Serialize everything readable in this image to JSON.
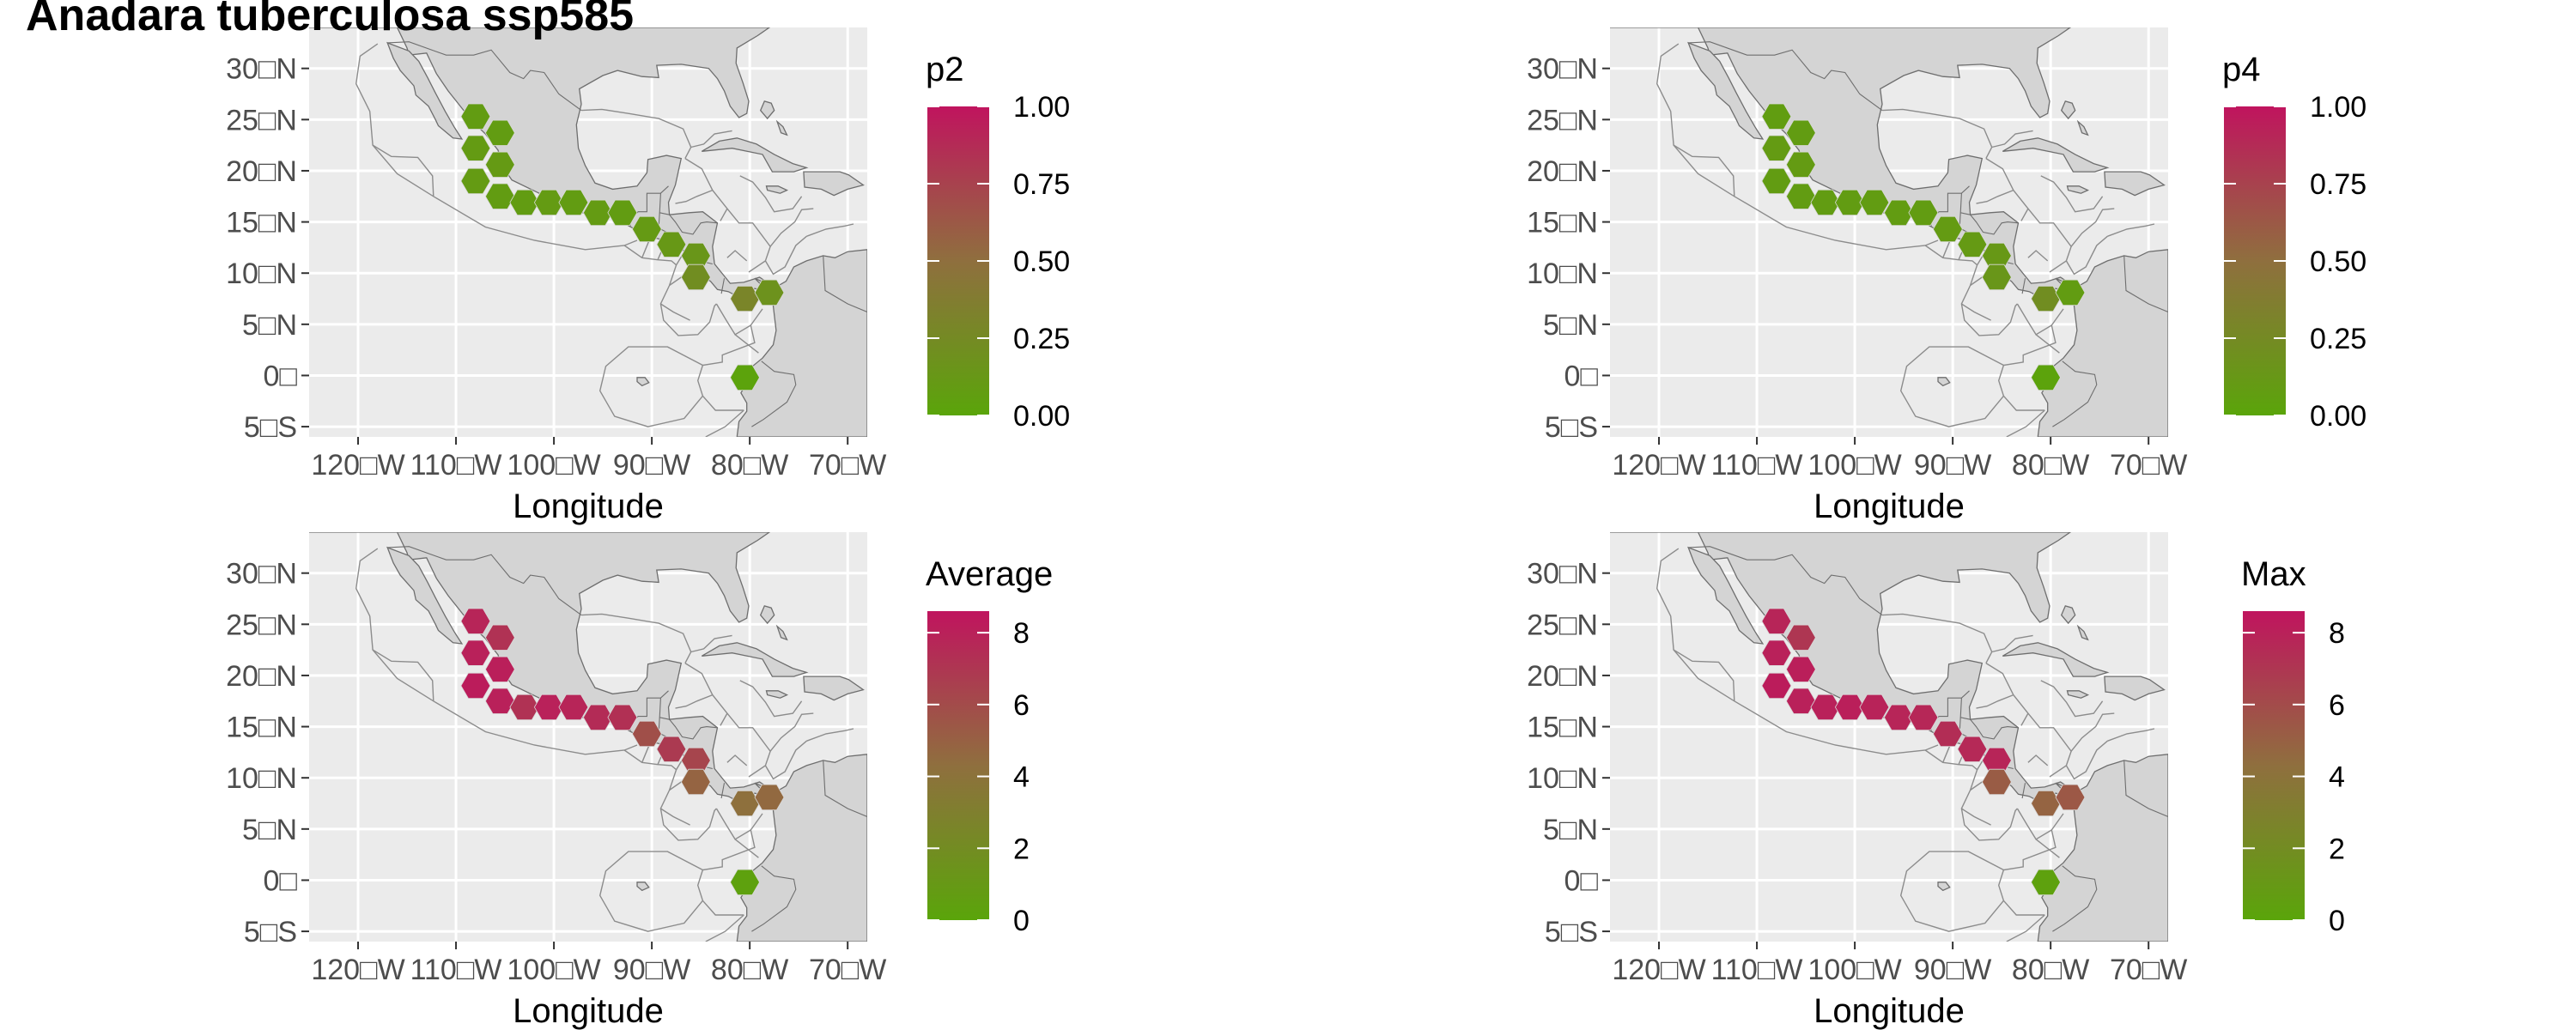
{
  "page": {
    "title": "Anadara tuberculosa ssp585"
  },
  "colors": {
    "panel_bg": "#ebebeb",
    "gridline": "#ffffff",
    "land": "#d4d4d4",
    "eez_line": "#8c8c8c",
    "coast_line": "#6e6e6e",
    "low": "#5aa50a",
    "mid": "#8f6f3e",
    "high": "#c0145e"
  },
  "chart_data": [
    {
      "type": "map",
      "legend_title": "p2",
      "xlabel": "Longitude",
      "ylabel": "",
      "xlim": [
        -125,
        -68
      ],
      "ylim": [
        -6,
        34
      ],
      "x_ticks": [
        -120,
        -110,
        -100,
        -90,
        -80,
        -70
      ],
      "x_tick_labels": [
        "120□W",
        "110□W",
        "100□W",
        "90□W",
        "80□W",
        "70□W"
      ],
      "y_ticks": [
        30,
        25,
        20,
        15,
        10,
        5,
        0,
        -5
      ],
      "y_tick_labels": [
        "30□N",
        "25□N",
        "20□N",
        "15□N",
        "10□N",
        "5□N",
        "0□",
        "5□S"
      ],
      "color_range": [
        0,
        1
      ],
      "legend_breaks": [
        1.0,
        0.75,
        0.5,
        0.25,
        0.0
      ],
      "legend_labels": [
        "1.00",
        "0.75",
        "0.50",
        "0.25",
        "0.00"
      ],
      "grid": true,
      "legend_position": "right",
      "points": [
        {
          "lon": -108.0,
          "lat": 25.3,
          "value": 0.08
        },
        {
          "lon": -105.5,
          "lat": 23.7,
          "value": 0.08
        },
        {
          "lon": -108.0,
          "lat": 22.2,
          "value": 0.09
        },
        {
          "lon": -105.5,
          "lat": 20.6,
          "value": 0.1
        },
        {
          "lon": -108.0,
          "lat": 19.0,
          "value": 0.09
        },
        {
          "lon": -105.5,
          "lat": 17.5,
          "value": 0.08
        },
        {
          "lon": -103.0,
          "lat": 16.9,
          "value": 0.08
        },
        {
          "lon": -100.5,
          "lat": 16.9,
          "value": 0.09
        },
        {
          "lon": -98.0,
          "lat": 16.9,
          "value": 0.08
        },
        {
          "lon": -95.5,
          "lat": 15.9,
          "value": 0.09
        },
        {
          "lon": -93.0,
          "lat": 15.9,
          "value": 0.08
        },
        {
          "lon": -90.5,
          "lat": 14.3,
          "value": 0.1
        },
        {
          "lon": -88.0,
          "lat": 12.8,
          "value": 0.12
        },
        {
          "lon": -85.5,
          "lat": 11.7,
          "value": 0.14
        },
        {
          "lon": -85.5,
          "lat": 9.6,
          "value": 0.22
        },
        {
          "lon": -80.5,
          "lat": 7.5,
          "value": 0.3
        },
        {
          "lon": -78.0,
          "lat": 8.1,
          "value": 0.18
        },
        {
          "lon": -80.5,
          "lat": -0.2,
          "value": 0.02
        }
      ]
    },
    {
      "type": "map",
      "legend_title": "p4",
      "xlabel": "Longitude",
      "ylabel": "",
      "xlim": [
        -125,
        -68
      ],
      "ylim": [
        -6,
        34
      ],
      "x_ticks": [
        -120,
        -110,
        -100,
        -90,
        -80,
        -70
      ],
      "x_tick_labels": [
        "120□W",
        "110□W",
        "100□W",
        "90□W",
        "80□W",
        "70□W"
      ],
      "y_ticks": [
        30,
        25,
        20,
        15,
        10,
        5,
        0,
        -5
      ],
      "y_tick_labels": [
        "30□N",
        "25□N",
        "20□N",
        "15□N",
        "10□N",
        "5□N",
        "0□",
        "5□S"
      ],
      "color_range": [
        0,
        1
      ],
      "legend_breaks": [
        1.0,
        0.75,
        0.5,
        0.25,
        0.0
      ],
      "legend_labels": [
        "1.00",
        "0.75",
        "0.50",
        "0.25",
        "0.00"
      ],
      "grid": true,
      "legend_position": "right",
      "points": [
        {
          "lon": -108.0,
          "lat": 25.3,
          "value": 0.07
        },
        {
          "lon": -105.5,
          "lat": 23.7,
          "value": 0.08
        },
        {
          "lon": -108.0,
          "lat": 22.2,
          "value": 0.09
        },
        {
          "lon": -105.5,
          "lat": 20.6,
          "value": 0.09
        },
        {
          "lon": -108.0,
          "lat": 19.0,
          "value": 0.08
        },
        {
          "lon": -105.5,
          "lat": 17.5,
          "value": 0.08
        },
        {
          "lon": -103.0,
          "lat": 16.9,
          "value": 0.08
        },
        {
          "lon": -100.5,
          "lat": 16.9,
          "value": 0.08
        },
        {
          "lon": -98.0,
          "lat": 16.9,
          "value": 0.08
        },
        {
          "lon": -95.5,
          "lat": 15.9,
          "value": 0.08
        },
        {
          "lon": -93.0,
          "lat": 15.9,
          "value": 0.08
        },
        {
          "lon": -90.5,
          "lat": 14.3,
          "value": 0.09
        },
        {
          "lon": -88.0,
          "lat": 12.8,
          "value": 0.1
        },
        {
          "lon": -85.5,
          "lat": 11.7,
          "value": 0.12
        },
        {
          "lon": -85.5,
          "lat": 9.6,
          "value": 0.14
        },
        {
          "lon": -80.5,
          "lat": 7.5,
          "value": 0.22
        },
        {
          "lon": -78.0,
          "lat": 8.1,
          "value": 0.08
        },
        {
          "lon": -80.5,
          "lat": -0.2,
          "value": 0.02
        }
      ]
    },
    {
      "type": "map",
      "legend_title": "Average",
      "xlabel": "Longitude",
      "ylabel": "",
      "xlim": [
        -125,
        -68
      ],
      "ylim": [
        -6,
        34
      ],
      "x_ticks": [
        -120,
        -110,
        -100,
        -90,
        -80,
        -70
      ],
      "x_tick_labels": [
        "120□W",
        "110□W",
        "100□W",
        "90□W",
        "80□W",
        "70□W"
      ],
      "y_ticks": [
        30,
        25,
        20,
        15,
        10,
        5,
        0,
        -5
      ],
      "y_tick_labels": [
        "30□N",
        "25□N",
        "20□N",
        "15□N",
        "10□N",
        "5□N",
        "0□",
        "5□S"
      ],
      "color_range": [
        0,
        8.6
      ],
      "legend_breaks": [
        8,
        6,
        4,
        2,
        0
      ],
      "legend_labels": [
        "8",
        "6",
        "4",
        "2",
        "0"
      ],
      "grid": true,
      "legend_position": "right",
      "points": [
        {
          "lon": -108.0,
          "lat": 25.3,
          "value": 7.8
        },
        {
          "lon": -105.5,
          "lat": 23.7,
          "value": 7.2
        },
        {
          "lon": -108.0,
          "lat": 22.2,
          "value": 8.0
        },
        {
          "lon": -105.5,
          "lat": 20.6,
          "value": 8.1
        },
        {
          "lon": -108.0,
          "lat": 19.0,
          "value": 8.2
        },
        {
          "lon": -105.5,
          "lat": 17.5,
          "value": 8.0
        },
        {
          "lon": -103.0,
          "lat": 16.9,
          "value": 7.2
        },
        {
          "lon": -100.5,
          "lat": 16.9,
          "value": 8.0
        },
        {
          "lon": -98.0,
          "lat": 16.9,
          "value": 7.8
        },
        {
          "lon": -95.5,
          "lat": 15.9,
          "value": 7.5
        },
        {
          "lon": -93.0,
          "lat": 15.9,
          "value": 7.3
        },
        {
          "lon": -90.5,
          "lat": 14.3,
          "value": 5.8
        },
        {
          "lon": -88.0,
          "lat": 12.8,
          "value": 6.8
        },
        {
          "lon": -85.5,
          "lat": 11.7,
          "value": 6.3
        },
        {
          "lon": -85.5,
          "lat": 9.6,
          "value": 4.8
        },
        {
          "lon": -80.5,
          "lat": 7.5,
          "value": 4.2
        },
        {
          "lon": -78.0,
          "lat": 8.1,
          "value": 4.6
        },
        {
          "lon": -80.5,
          "lat": -0.2,
          "value": 0.3
        }
      ]
    },
    {
      "type": "map",
      "legend_title": "Max",
      "xlabel": "Longitude",
      "ylabel": "",
      "xlim": [
        -125,
        -68
      ],
      "ylim": [
        -6,
        34
      ],
      "x_ticks": [
        -120,
        -110,
        -100,
        -90,
        -80,
        -70
      ],
      "x_tick_labels": [
        "120□W",
        "110□W",
        "100□W",
        "90□W",
        "80□W",
        "70□W"
      ],
      "y_ticks": [
        30,
        25,
        20,
        15,
        10,
        5,
        0,
        -5
      ],
      "y_tick_labels": [
        "30□N",
        "25□N",
        "20□N",
        "15□N",
        "10□N",
        "5□N",
        "0□",
        "5□S"
      ],
      "color_range": [
        0,
        8.6
      ],
      "legend_breaks": [
        8,
        6,
        4,
        2,
        0
      ],
      "legend_labels": [
        "8",
        "6",
        "4",
        "2",
        "0"
      ],
      "grid": true,
      "legend_position": "right",
      "points": [
        {
          "lon": -108.0,
          "lat": 25.3,
          "value": 7.8
        },
        {
          "lon": -105.5,
          "lat": 23.7,
          "value": 7.0
        },
        {
          "lon": -108.0,
          "lat": 22.2,
          "value": 8.0
        },
        {
          "lon": -105.5,
          "lat": 20.6,
          "value": 8.1
        },
        {
          "lon": -108.0,
          "lat": 19.0,
          "value": 8.2
        },
        {
          "lon": -105.5,
          "lat": 17.5,
          "value": 8.0
        },
        {
          "lon": -103.0,
          "lat": 16.9,
          "value": 8.0
        },
        {
          "lon": -100.5,
          "lat": 16.9,
          "value": 8.1
        },
        {
          "lon": -98.0,
          "lat": 16.9,
          "value": 7.9
        },
        {
          "lon": -95.5,
          "lat": 15.9,
          "value": 7.8
        },
        {
          "lon": -93.0,
          "lat": 15.9,
          "value": 7.7
        },
        {
          "lon": -90.5,
          "lat": 14.3,
          "value": 7.4
        },
        {
          "lon": -88.0,
          "lat": 12.8,
          "value": 7.6
        },
        {
          "lon": -85.5,
          "lat": 11.7,
          "value": 7.8
        },
        {
          "lon": -85.5,
          "lat": 9.6,
          "value": 5.2
        },
        {
          "lon": -80.5,
          "lat": 7.5,
          "value": 4.8
        },
        {
          "lon": -78.0,
          "lat": 8.1,
          "value": 5.4
        },
        {
          "lon": -80.5,
          "lat": -0.2,
          "value": 0.3
        }
      ]
    }
  ]
}
